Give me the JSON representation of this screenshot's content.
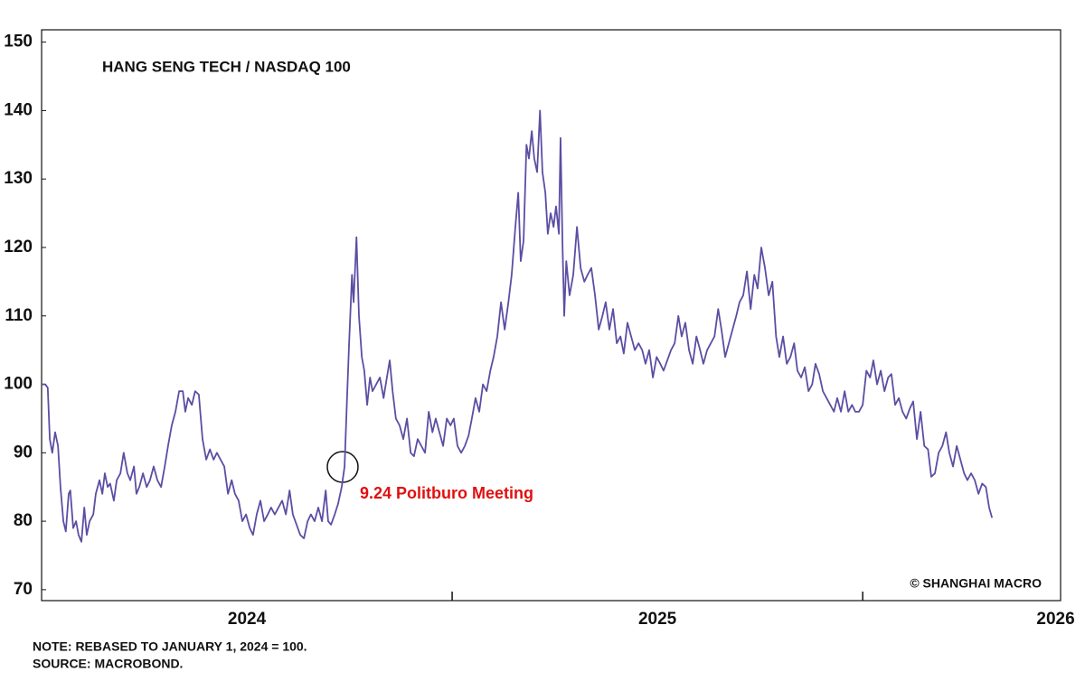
{
  "chart_data": {
    "type": "line",
    "title": "HANG SENG TECH / NASDAQ 100",
    "annotation": "9.24 Politburo Meeting",
    "credit": "© SHANGHAI MACRO",
    "note": "NOTE: REBASED TO JANUARY 1, 2024 = 100.",
    "source": "SOURCE: MACROBOND.",
    "color": "#5b4ea3",
    "xlim": [
      2024,
      2026.482
    ],
    "ylim": [
      68.4,
      151.8
    ],
    "yticks": [
      70,
      80,
      90,
      100,
      110,
      120,
      130,
      140,
      150
    ],
    "xticks": [
      {
        "value": 2024.5,
        "label": "2024"
      },
      {
        "value": 2025.5,
        "label": "2025"
      },
      {
        "value": 2026.47,
        "label": "2026"
      }
    ],
    "xtick_marks": [
      2025,
      2026
    ],
    "x": [
      2024.0,
      2024.009,
      2024.015,
      2024.02,
      2024.026,
      2024.033,
      2024.04,
      2024.046,
      2024.053,
      2024.059,
      2024.066,
      2024.07,
      2024.077,
      2024.084,
      2024.09,
      2024.097,
      2024.104,
      2024.11,
      2024.117,
      2024.126,
      2024.132,
      2024.141,
      2024.148,
      2024.154,
      2024.161,
      2024.167,
      2024.176,
      2024.183,
      2024.192,
      2024.2,
      2024.209,
      2024.216,
      2024.225,
      2024.231,
      2024.238,
      2024.247,
      2024.256,
      2024.264,
      2024.273,
      2024.282,
      2024.291,
      2024.3,
      2024.308,
      2024.317,
      2024.326,
      2024.335,
      2024.344,
      2024.35,
      2024.357,
      2024.366,
      2024.374,
      2024.383,
      2024.392,
      2024.401,
      2024.41,
      2024.419,
      2024.427,
      2024.436,
      2024.445,
      2024.454,
      2024.463,
      2024.471,
      2024.48,
      2024.489,
      2024.498,
      2024.507,
      2024.515,
      2024.524,
      2024.533,
      2024.542,
      2024.551,
      2024.559,
      2024.568,
      2024.577,
      2024.586,
      2024.595,
      2024.604,
      2024.612,
      2024.621,
      2024.63,
      2024.639,
      2024.648,
      2024.656,
      2024.665,
      2024.674,
      2024.683,
      2024.692,
      2024.698,
      2024.705,
      2024.714,
      2024.722,
      2024.731,
      2024.738,
      2024.744,
      2024.749,
      2024.756,
      2024.76,
      2024.767,
      2024.773,
      2024.78,
      2024.786,
      2024.793,
      2024.8,
      2024.806,
      2024.815,
      2024.824,
      2024.833,
      2024.841,
      2024.848,
      2024.855,
      2024.863,
      2024.872,
      2024.881,
      2024.89,
      2024.899,
      2024.907,
      2024.916,
      2024.925,
      2024.934,
      2024.943,
      2024.952,
      2024.96,
      2024.969,
      2024.978,
      2024.987,
      2024.996,
      2025.004,
      2025.013,
      2025.022,
      2025.031,
      2025.04,
      2025.048,
      2025.057,
      2025.066,
      2025.075,
      2025.084,
      2025.093,
      2025.101,
      2025.11,
      2025.119,
      2025.128,
      2025.137,
      2025.145,
      2025.154,
      2025.161,
      2025.167,
      2025.174,
      2025.181,
      2025.187,
      2025.194,
      2025.2,
      2025.207,
      2025.214,
      2025.22,
      2025.227,
      2025.233,
      2025.24,
      2025.247,
      2025.253,
      2025.26,
      2025.264,
      2025.269,
      2025.273,
      2025.278,
      2025.286,
      2025.295,
      2025.304,
      2025.313,
      2025.322,
      2025.33,
      2025.339,
      2025.348,
      2025.357,
      2025.366,
      2025.374,
      2025.383,
      2025.392,
      2025.401,
      2025.41,
      2025.418,
      2025.427,
      2025.436,
      2025.445,
      2025.454,
      2025.463,
      2025.471,
      2025.48,
      2025.489,
      2025.498,
      2025.507,
      2025.515,
      2025.524,
      2025.533,
      2025.542,
      2025.551,
      2025.559,
      2025.568,
      2025.577,
      2025.586,
      2025.595,
      2025.604,
      2025.612,
      2025.621,
      2025.63,
      2025.639,
      2025.648,
      2025.656,
      2025.665,
      2025.674,
      2025.683,
      2025.692,
      2025.7,
      2025.709,
      2025.718,
      2025.727,
      2025.736,
      2025.744,
      2025.753,
      2025.762,
      2025.771,
      2025.78,
      2025.789,
      2025.797,
      2025.806,
      2025.815,
      2025.824,
      2025.833,
      2025.841,
      2025.85,
      2025.859,
      2025.868,
      2025.877,
      2025.885,
      2025.894,
      2025.903,
      2025.912,
      2025.921,
      2025.93,
      2025.938,
      2025.947,
      2025.956,
      2025.965,
      2025.974,
      2025.982,
      2025.991,
      2026.0,
      2026.009,
      2026.018,
      2026.026,
      2026.035,
      2026.044,
      2026.053,
      2026.062,
      2026.07,
      2026.079,
      2026.088,
      2026.097,
      2026.106,
      2026.115,
      2026.123,
      2026.132,
      2026.141,
      2026.15,
      2026.159,
      2026.167,
      2026.176,
      2026.185,
      2026.194,
      2026.203,
      2026.211,
      2026.22,
      2026.229,
      2026.238,
      2026.247,
      2026.255,
      2026.264,
      2026.273,
      2026.282,
      2026.291,
      2026.3,
      2026.308,
      2026.315
    ],
    "values": [
      100,
      100,
      99.5,
      92,
      90,
      93,
      91,
      85,
      80,
      78.5,
      84,
      84.5,
      79,
      80,
      78,
      77,
      82,
      78,
      80,
      81,
      84,
      86,
      84,
      87,
      85,
      85.5,
      83,
      86,
      87,
      90,
      87,
      86,
      88,
      84,
      85,
      87,
      85,
      86,
      88,
      86,
      85,
      88,
      91,
      94,
      96,
      99,
      99,
      96,
      98,
      97,
      99,
      98.5,
      92,
      89,
      90.5,
      89,
      90,
      89,
      88,
      84,
      86,
      84,
      83,
      80,
      81,
      79,
      78,
      81,
      83,
      80,
      81,
      82,
      81,
      82,
      83,
      81,
      84.5,
      81,
      79.5,
      78,
      77.5,
      80,
      81,
      80,
      82,
      80,
      84.5,
      80,
      79.5,
      81,
      82.5,
      85,
      88,
      98,
      106,
      116,
      112,
      121.5,
      110,
      104,
      102,
      97,
      101,
      99,
      100,
      101,
      98,
      101,
      103.5,
      99,
      95,
      94,
      92,
      95,
      90,
      89.5,
      92,
      91,
      90,
      96,
      93,
      95,
      93,
      91,
      95,
      94,
      95,
      91,
      90,
      91,
      92.5,
      95,
      98,
      96,
      100,
      99,
      102,
      104,
      107,
      112,
      108,
      112,
      116,
      123,
      128,
      118,
      121,
      135,
      133,
      137,
      133,
      131,
      140,
      131,
      128,
      122,
      125,
      123,
      126,
      122,
      136,
      120,
      110,
      118,
      113,
      116,
      123,
      117,
      115,
      116,
      117,
      113,
      108,
      110,
      112,
      108,
      111,
      106,
      107,
      104.5,
      109,
      107,
      105,
      106,
      105,
      103,
      105,
      101,
      104,
      103,
      102,
      103.5,
      105,
      106,
      110,
      107,
      109,
      105,
      103,
      107,
      105,
      103,
      105,
      106,
      107,
      111,
      108,
      104,
      106,
      108,
      110,
      112,
      113,
      116.5,
      111,
      116,
      114,
      120,
      117,
      113,
      115,
      107,
      104,
      107,
      103,
      104,
      106,
      102,
      101,
      102.5,
      99,
      100,
      103,
      101.5,
      99,
      98,
      97,
      96,
      98,
      96,
      99,
      96,
      97,
      96,
      96,
      97,
      102,
      101,
      103.5,
      100,
      102,
      99,
      101,
      101.5,
      97,
      98,
      96,
      95,
      96.5,
      97.5,
      92,
      96,
      91,
      90.5,
      86.5,
      87,
      90,
      91,
      93,
      90,
      88,
      91,
      89,
      87,
      86,
      87,
      86,
      84,
      85.5,
      85,
      82,
      80.5
    ]
  }
}
